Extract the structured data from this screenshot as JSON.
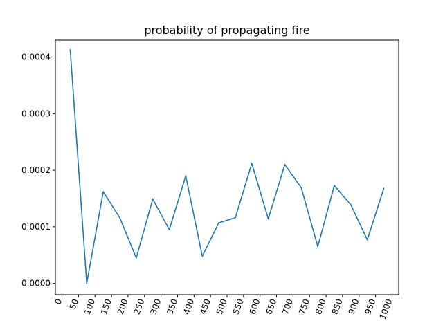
{
  "chart_data": {
    "type": "line",
    "title": "probability of propagating fire",
    "xlabel": "",
    "ylabel": "",
    "xlim": [
      -20,
      1020
    ],
    "ylim": [
      -2e-05,
      0.00043
    ],
    "x_ticks": [
      0,
      50,
      100,
      150,
      200,
      250,
      300,
      350,
      400,
      450,
      500,
      550,
      600,
      650,
      700,
      750,
      800,
      850,
      900,
      950,
      1000
    ],
    "y_ticks": [
      0.0,
      0.0001,
      0.0002,
      0.0003,
      0.0004
    ],
    "y_tick_labels": [
      "0.0000",
      "0.0001",
      "0.0002",
      "0.0003",
      "0.0004"
    ],
    "x_tick_rotation_deg": 70,
    "grid": false,
    "series": [
      {
        "color": "#1f77b4",
        "x": [
          25,
          75,
          125,
          175,
          225,
          275,
          325,
          375,
          425,
          475,
          525,
          575,
          625,
          675,
          725,
          775,
          825,
          875,
          925,
          975
        ],
        "y": [
          0.000413,
          0.0,
          0.000162,
          0.000116,
          4.5e-05,
          0.000149,
          9.5e-05,
          0.00019,
          4.8e-05,
          0.000107,
          0.000116,
          0.000212,
          0.000114,
          0.00021,
          0.000169,
          6.5e-05,
          0.000173,
          0.000139,
          7.7e-05,
          0.000168
        ]
      }
    ]
  }
}
